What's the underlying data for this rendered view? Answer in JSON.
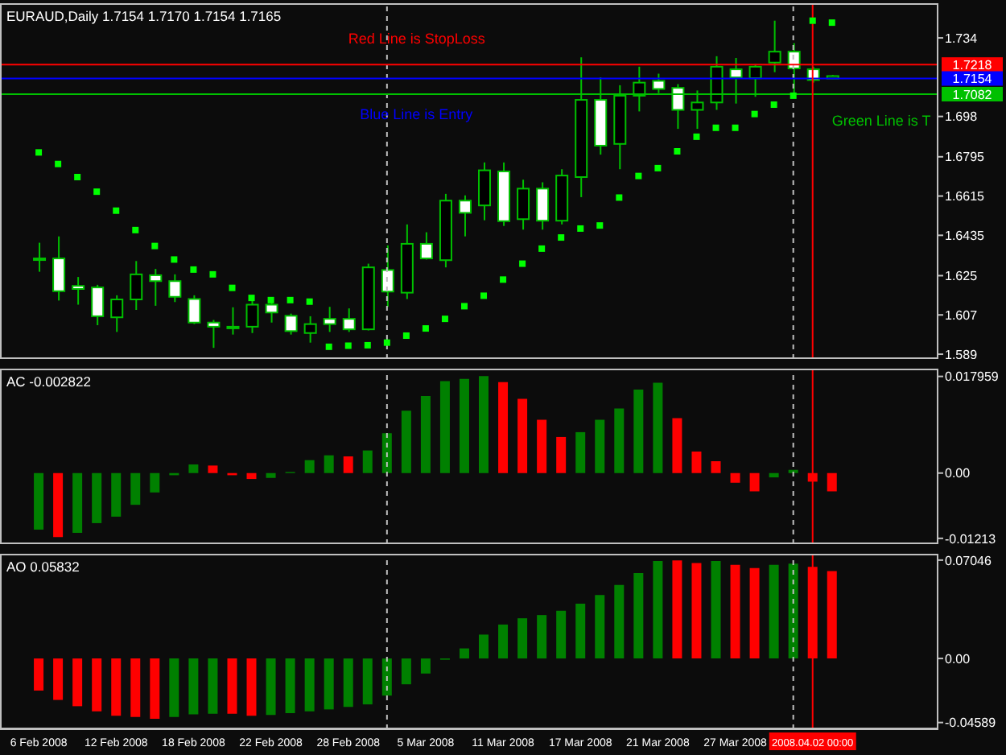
{
  "chart_data": [
    {
      "type": "candlestick",
      "title": "EURAUD,Daily 1.7154 1.7170 1.7154 1.7165",
      "color": "#00c000",
      "tick_labels": "y",
      "marker": "square",
      "categories": [
        "6 Feb 2008",
        null,
        null,
        null,
        "12 Feb 2008",
        null,
        null,
        null,
        "18 Feb 2008",
        null,
        null,
        null,
        "22 Feb 2008",
        null,
        null,
        null,
        "28 Feb 2008",
        null,
        null,
        null,
        "5 Mar 2008",
        null,
        null,
        null,
        "11 Mar 2008",
        null,
        null,
        null,
        "17 Mar 2008",
        null,
        null,
        null,
        "21 Mar 2008",
        null,
        null,
        null,
        "27 Mar 2008",
        null,
        null,
        null,
        "2008.04.02 00:00",
        null,
        null,
        null,
        null,
        null,
        null
      ],
      "ohlc": [
        [
          1.6329,
          1.6401,
          1.6268,
          1.6329
        ],
        [
          1.6329,
          1.643,
          1.6136,
          1.6179
        ],
        [
          1.6203,
          1.6244,
          1.6117,
          1.6189
        ],
        [
          1.6196,
          1.6208,
          1.6023,
          1.6064
        ],
        [
          1.6059,
          1.616,
          1.5992,
          1.6141
        ],
        [
          1.6141,
          1.6317,
          1.6093,
          1.6256
        ],
        [
          1.6252,
          1.6281,
          1.6112,
          1.6225
        ],
        [
          1.6225,
          1.6256,
          1.6129,
          1.6153
        ],
        [
          1.6143,
          1.616,
          1.6028,
          1.6035
        ],
        [
          1.6035,
          1.6047,
          1.5919,
          1.6016
        ],
        [
          1.6016,
          1.6105,
          1.598,
          1.6016
        ],
        [
          1.6016,
          1.6136,
          1.5987,
          1.6117
        ],
        [
          1.6117,
          1.6136,
          1.6035,
          1.6081
        ],
        [
          1.6066,
          1.6076,
          1.598,
          1.5996
        ],
        [
          1.5987,
          1.6064,
          1.5943,
          1.6028
        ],
        [
          1.6052,
          1.6107,
          1.5992,
          1.6028
        ],
        [
          1.6052,
          1.61,
          1.5992,
          1.6004
        ],
        [
          1.6004,
          1.6305,
          1.5999,
          1.6288
        ],
        [
          1.6276,
          1.6389,
          1.6107,
          1.6177
        ],
        [
          1.6172,
          1.6485,
          1.6143,
          1.6396
        ],
        [
          1.6396,
          1.6449,
          1.6324,
          1.6329
        ],
        [
          1.6321,
          1.6625,
          1.6288,
          1.6594
        ],
        [
          1.6594,
          1.6618,
          1.643,
          1.6538
        ],
        [
          1.6572,
          1.6769,
          1.6504,
          1.6733
        ],
        [
          1.6728,
          1.6769,
          1.6478,
          1.65
        ],
        [
          1.6509,
          1.669,
          1.6461,
          1.6649
        ],
        [
          1.6649,
          1.6678,
          1.6461,
          1.6502
        ],
        [
          1.6502,
          1.6738,
          1.6485,
          1.6709
        ],
        [
          1.6702,
          1.7251,
          1.661,
          1.7056
        ],
        [
          1.7056,
          1.7159,
          1.6805,
          1.6846
        ],
        [
          1.6854,
          1.7123,
          1.6738,
          1.7075
        ],
        [
          1.7075,
          1.7208,
          1.7003,
          1.7135
        ],
        [
          1.7143,
          1.7176,
          1.7087,
          1.7106
        ],
        [
          1.7111,
          1.7128,
          1.6923,
          1.701
        ],
        [
          1.701,
          1.7099,
          1.6923,
          1.7044
        ],
        [
          1.7044,
          1.7256,
          1.701,
          1.7208
        ],
        [
          1.7196,
          1.7248,
          1.7039,
          1.7159
        ],
        [
          1.7155,
          1.722,
          1.707,
          1.7208
        ],
        [
          1.7227,
          1.7419,
          1.7183,
          1.7277
        ],
        [
          1.7277,
          1.7316,
          1.7063,
          1.72
        ],
        [
          1.7196,
          1.7208,
          1.7135,
          1.7147
        ],
        [
          1.7154,
          1.717,
          1.7154,
          1.7165
        ],
        null,
        null,
        null,
        null,
        null
      ],
      "series": [
        {
          "type": "scatter",
          "color": "#00ff00",
          "values": [
            1.6815,
            1.6762,
            1.6702,
            1.6635,
            1.6548,
            1.6459,
            1.6386,
            1.6324,
            1.6278,
            1.6256,
            1.6194,
            1.6148,
            1.6138,
            1.6138,
            1.6131,
            1.5924,
            1.5929,
            1.5931,
            1.5943,
            1.5975,
            1.6008,
            1.6052,
            1.611,
            1.6158,
            1.6232,
            1.6305,
            1.6374,
            1.6425,
            1.6466,
            1.648,
            1.6608,
            1.6707,
            1.6743,
            1.682,
            1.6887,
            1.6928,
            1.6928,
            1.6991,
            1.7034,
            1.7075,
            1.7419,
            1.741,
            null,
            null,
            null,
            null,
            null
          ]
        }
      ],
      "ylim": [
        1.5868,
        1.7499
      ],
      "yticks": [
        1.589,
        1.607,
        1.625,
        1.6435,
        1.6615,
        1.6795,
        1.698,
        1.734
      ],
      "ref_lines": [
        {
          "axis": "y",
          "value": 1.7218,
          "label": "1.7218",
          "color": "#ff0000"
        },
        {
          "axis": "y",
          "value": 1.7154,
          "label": "1.7154",
          "color": "#0000ff"
        },
        {
          "axis": "y",
          "value": 1.7082,
          "label": "1.7082",
          "color": "#00c000"
        },
        {
          "axis": "x",
          "value": "2008.04.02 00:00",
          "color": "#ff0000",
          "line_style": "solid"
        }
      ],
      "annotations": [
        "Red Line is StopLoss",
        "Blue Line is Entry",
        "Green Line is T"
      ]
    },
    {
      "type": "bar",
      "title": "AC -0.002822",
      "tick_labels": "y",
      "categories": [
        "6 Feb 2008",
        null,
        null,
        null,
        "12 Feb 2008",
        null,
        null,
        null,
        "18 Feb 2008",
        null,
        null,
        null,
        "22 Feb 2008",
        null,
        null,
        null,
        "28 Feb 2008",
        null,
        null,
        null,
        "5 Mar 2008",
        null,
        null,
        null,
        "11 Mar 2008",
        null,
        null,
        null,
        "17 Mar 2008",
        null,
        null,
        null,
        "21 Mar 2008",
        null,
        null,
        null,
        "27 Mar 2008",
        null,
        null,
        null,
        "2008.04.02 00:00",
        null,
        null,
        null,
        null,
        null,
        null
      ],
      "values": [
        -0.0105,
        -0.0119,
        -0.0111,
        -0.0093,
        -0.0081,
        -0.0059,
        -0.0036,
        -0.0004,
        0.0016,
        0.0014,
        -0.0004,
        -0.0011,
        -0.0009,
        0.0002,
        0.0024,
        0.0033,
        0.0031,
        0.0042,
        0.0074,
        0.0116,
        0.0143,
        0.0171,
        0.0175,
        0.018,
        0.0169,
        0.0138,
        0.0099,
        0.0067,
        0.0076,
        0.0099,
        0.012,
        0.0155,
        0.0168,
        0.0102,
        0.004,
        0.0022,
        -0.0018,
        -0.0034,
        -0.0008,
        0.0006,
        -0.0016,
        -0.0034,
        null,
        null,
        null,
        null,
        null
      ],
      "colors": [
        "#008000",
        "#ff0000",
        "#008000",
        "#008000",
        "#008000",
        "#008000",
        "#008000",
        "#008000",
        "#008000",
        "#ff0000",
        "#ff0000",
        "#ff0000",
        "#008000",
        "#008000",
        "#008000",
        "#008000",
        "#ff0000",
        "#008000",
        "#008000",
        "#008000",
        "#008000",
        "#008000",
        "#008000",
        "#008000",
        "#ff0000",
        "#ff0000",
        "#ff0000",
        "#ff0000",
        "#008000",
        "#008000",
        "#008000",
        "#008000",
        "#008000",
        "#ff0000",
        "#ff0000",
        "#ff0000",
        "#ff0000",
        "#ff0000",
        "#008000",
        "#008000",
        "#ff0000",
        "#ff0000",
        null,
        null,
        null,
        null,
        null
      ],
      "ylim": [
        -0.0132,
        0.0194
      ],
      "yticks": [
        {
          "value": 0.017959,
          "label": "0.017959"
        },
        {
          "value": 0,
          "label": "0.00"
        },
        {
          "value": -0.01213,
          "label": "-0.01213"
        }
      ],
      "ref_lines": [
        {
          "axis": "x",
          "value": "2008.04.02 00:00",
          "color": "#ff0000",
          "line_style": "solid"
        }
      ]
    },
    {
      "type": "bar",
      "title": "AO 0.05832",
      "categories": [
        "6 Feb 2008",
        null,
        null,
        null,
        "12 Feb 2008",
        null,
        null,
        null,
        "18 Feb 2008",
        null,
        null,
        null,
        "22 Feb 2008",
        null,
        null,
        null,
        "28 Feb 2008",
        null,
        null,
        null,
        "5 Mar 2008",
        null,
        null,
        null,
        "11 Mar 2008",
        null,
        null,
        null,
        "17 Mar 2008",
        null,
        null,
        null,
        "21 Mar 2008",
        null,
        null,
        null,
        "27 Mar 2008",
        null,
        null,
        null,
        "2008.04.02 00:00",
        null,
        null,
        null,
        null,
        null,
        null
      ],
      "values": [
        -0.023,
        -0.0297,
        -0.0342,
        -0.0378,
        -0.041,
        -0.0419,
        -0.0432,
        -0.0419,
        -0.0401,
        -0.0396,
        -0.0396,
        -0.041,
        -0.0405,
        -0.0392,
        -0.0378,
        -0.0365,
        -0.0347,
        -0.0329,
        -0.0266,
        -0.0185,
        -0.0108,
        -0.0009,
        0.0072,
        0.0171,
        0.0243,
        0.0288,
        0.0311,
        0.0342,
        0.0392,
        0.0455,
        0.0527,
        0.0612,
        0.0698,
        0.0702,
        0.0684,
        0.0698,
        0.0671,
        0.0648,
        0.0671,
        0.068,
        0.0657,
        0.0626,
        null,
        null,
        null,
        null,
        null
      ],
      "colors": [
        "#ff0000",
        "#ff0000",
        "#ff0000",
        "#ff0000",
        "#ff0000",
        "#ff0000",
        "#ff0000",
        "#008000",
        "#008000",
        "#008000",
        "#ff0000",
        "#ff0000",
        "#008000",
        "#008000",
        "#008000",
        "#008000",
        "#008000",
        "#008000",
        "#008000",
        "#008000",
        "#008000",
        "#008000",
        "#008000",
        "#008000",
        "#008000",
        "#008000",
        "#008000",
        "#008000",
        "#008000",
        "#008000",
        "#008000",
        "#008000",
        "#008000",
        "#ff0000",
        "#ff0000",
        "#008000",
        "#ff0000",
        "#ff0000",
        "#008000",
        "#008000",
        "#ff0000",
        "#ff0000",
        null,
        null,
        null,
        null,
        null
      ],
      "ylim": [
        -0.0507,
        0.075
      ],
      "yticks": [
        {
          "value": 0.07046,
          "label": "0.07046"
        },
        {
          "value": 0,
          "label": "0.00"
        },
        {
          "value": -0.04589,
          "label": "-0.04589"
        }
      ],
      "ref_lines": [
        {
          "axis": "x",
          "value": "2008.04.02 00:00",
          "color": "#ff0000",
          "line_style": "solid"
        }
      ]
    }
  ]
}
